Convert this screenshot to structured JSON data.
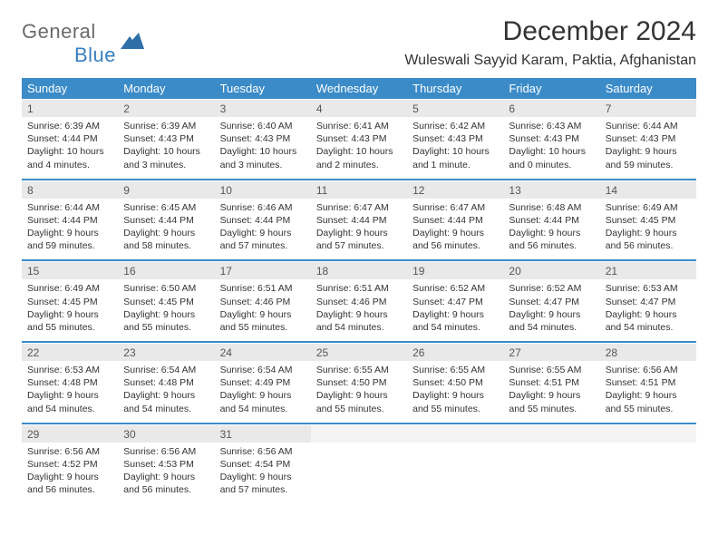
{
  "brand": {
    "part1": "General",
    "part2": "Blue"
  },
  "title": "December 2024",
  "location": "Wuleswali Sayyid Karam, Paktia, Afghanistan",
  "dow": [
    "Sunday",
    "Monday",
    "Tuesday",
    "Wednesday",
    "Thursday",
    "Friday",
    "Saturday"
  ],
  "colors": {
    "header_bg": "#3b8bc8",
    "daynum_bg": "#e9e9e9",
    "rule": "#3b8bc8"
  },
  "weeks": [
    [
      {
        "n": "1",
        "sr": "Sunrise: 6:39 AM",
        "ss": "Sunset: 4:44 PM",
        "dl": "Daylight: 10 hours and 4 minutes."
      },
      {
        "n": "2",
        "sr": "Sunrise: 6:39 AM",
        "ss": "Sunset: 4:43 PM",
        "dl": "Daylight: 10 hours and 3 minutes."
      },
      {
        "n": "3",
        "sr": "Sunrise: 6:40 AM",
        "ss": "Sunset: 4:43 PM",
        "dl": "Daylight: 10 hours and 3 minutes."
      },
      {
        "n": "4",
        "sr": "Sunrise: 6:41 AM",
        "ss": "Sunset: 4:43 PM",
        "dl": "Daylight: 10 hours and 2 minutes."
      },
      {
        "n": "5",
        "sr": "Sunrise: 6:42 AM",
        "ss": "Sunset: 4:43 PM",
        "dl": "Daylight: 10 hours and 1 minute."
      },
      {
        "n": "6",
        "sr": "Sunrise: 6:43 AM",
        "ss": "Sunset: 4:43 PM",
        "dl": "Daylight: 10 hours and 0 minutes."
      },
      {
        "n": "7",
        "sr": "Sunrise: 6:44 AM",
        "ss": "Sunset: 4:43 PM",
        "dl": "Daylight: 9 hours and 59 minutes."
      }
    ],
    [
      {
        "n": "8",
        "sr": "Sunrise: 6:44 AM",
        "ss": "Sunset: 4:44 PM",
        "dl": "Daylight: 9 hours and 59 minutes."
      },
      {
        "n": "9",
        "sr": "Sunrise: 6:45 AM",
        "ss": "Sunset: 4:44 PM",
        "dl": "Daylight: 9 hours and 58 minutes."
      },
      {
        "n": "10",
        "sr": "Sunrise: 6:46 AM",
        "ss": "Sunset: 4:44 PM",
        "dl": "Daylight: 9 hours and 57 minutes."
      },
      {
        "n": "11",
        "sr": "Sunrise: 6:47 AM",
        "ss": "Sunset: 4:44 PM",
        "dl": "Daylight: 9 hours and 57 minutes."
      },
      {
        "n": "12",
        "sr": "Sunrise: 6:47 AM",
        "ss": "Sunset: 4:44 PM",
        "dl": "Daylight: 9 hours and 56 minutes."
      },
      {
        "n": "13",
        "sr": "Sunrise: 6:48 AM",
        "ss": "Sunset: 4:44 PM",
        "dl": "Daylight: 9 hours and 56 minutes."
      },
      {
        "n": "14",
        "sr": "Sunrise: 6:49 AM",
        "ss": "Sunset: 4:45 PM",
        "dl": "Daylight: 9 hours and 56 minutes."
      }
    ],
    [
      {
        "n": "15",
        "sr": "Sunrise: 6:49 AM",
        "ss": "Sunset: 4:45 PM",
        "dl": "Daylight: 9 hours and 55 minutes."
      },
      {
        "n": "16",
        "sr": "Sunrise: 6:50 AM",
        "ss": "Sunset: 4:45 PM",
        "dl": "Daylight: 9 hours and 55 minutes."
      },
      {
        "n": "17",
        "sr": "Sunrise: 6:51 AM",
        "ss": "Sunset: 4:46 PM",
        "dl": "Daylight: 9 hours and 55 minutes."
      },
      {
        "n": "18",
        "sr": "Sunrise: 6:51 AM",
        "ss": "Sunset: 4:46 PM",
        "dl": "Daylight: 9 hours and 54 minutes."
      },
      {
        "n": "19",
        "sr": "Sunrise: 6:52 AM",
        "ss": "Sunset: 4:47 PM",
        "dl": "Daylight: 9 hours and 54 minutes."
      },
      {
        "n": "20",
        "sr": "Sunrise: 6:52 AM",
        "ss": "Sunset: 4:47 PM",
        "dl": "Daylight: 9 hours and 54 minutes."
      },
      {
        "n": "21",
        "sr": "Sunrise: 6:53 AM",
        "ss": "Sunset: 4:47 PM",
        "dl": "Daylight: 9 hours and 54 minutes."
      }
    ],
    [
      {
        "n": "22",
        "sr": "Sunrise: 6:53 AM",
        "ss": "Sunset: 4:48 PM",
        "dl": "Daylight: 9 hours and 54 minutes."
      },
      {
        "n": "23",
        "sr": "Sunrise: 6:54 AM",
        "ss": "Sunset: 4:48 PM",
        "dl": "Daylight: 9 hours and 54 minutes."
      },
      {
        "n": "24",
        "sr": "Sunrise: 6:54 AM",
        "ss": "Sunset: 4:49 PM",
        "dl": "Daylight: 9 hours and 54 minutes."
      },
      {
        "n": "25",
        "sr": "Sunrise: 6:55 AM",
        "ss": "Sunset: 4:50 PM",
        "dl": "Daylight: 9 hours and 55 minutes."
      },
      {
        "n": "26",
        "sr": "Sunrise: 6:55 AM",
        "ss": "Sunset: 4:50 PM",
        "dl": "Daylight: 9 hours and 55 minutes."
      },
      {
        "n": "27",
        "sr": "Sunrise: 6:55 AM",
        "ss": "Sunset: 4:51 PM",
        "dl": "Daylight: 9 hours and 55 minutes."
      },
      {
        "n": "28",
        "sr": "Sunrise: 6:56 AM",
        "ss": "Sunset: 4:51 PM",
        "dl": "Daylight: 9 hours and 55 minutes."
      }
    ],
    [
      {
        "n": "29",
        "sr": "Sunrise: 6:56 AM",
        "ss": "Sunset: 4:52 PM",
        "dl": "Daylight: 9 hours and 56 minutes."
      },
      {
        "n": "30",
        "sr": "Sunrise: 6:56 AM",
        "ss": "Sunset: 4:53 PM",
        "dl": "Daylight: 9 hours and 56 minutes."
      },
      {
        "n": "31",
        "sr": "Sunrise: 6:56 AM",
        "ss": "Sunset: 4:54 PM",
        "dl": "Daylight: 9 hours and 57 minutes."
      },
      null,
      null,
      null,
      null
    ]
  ]
}
